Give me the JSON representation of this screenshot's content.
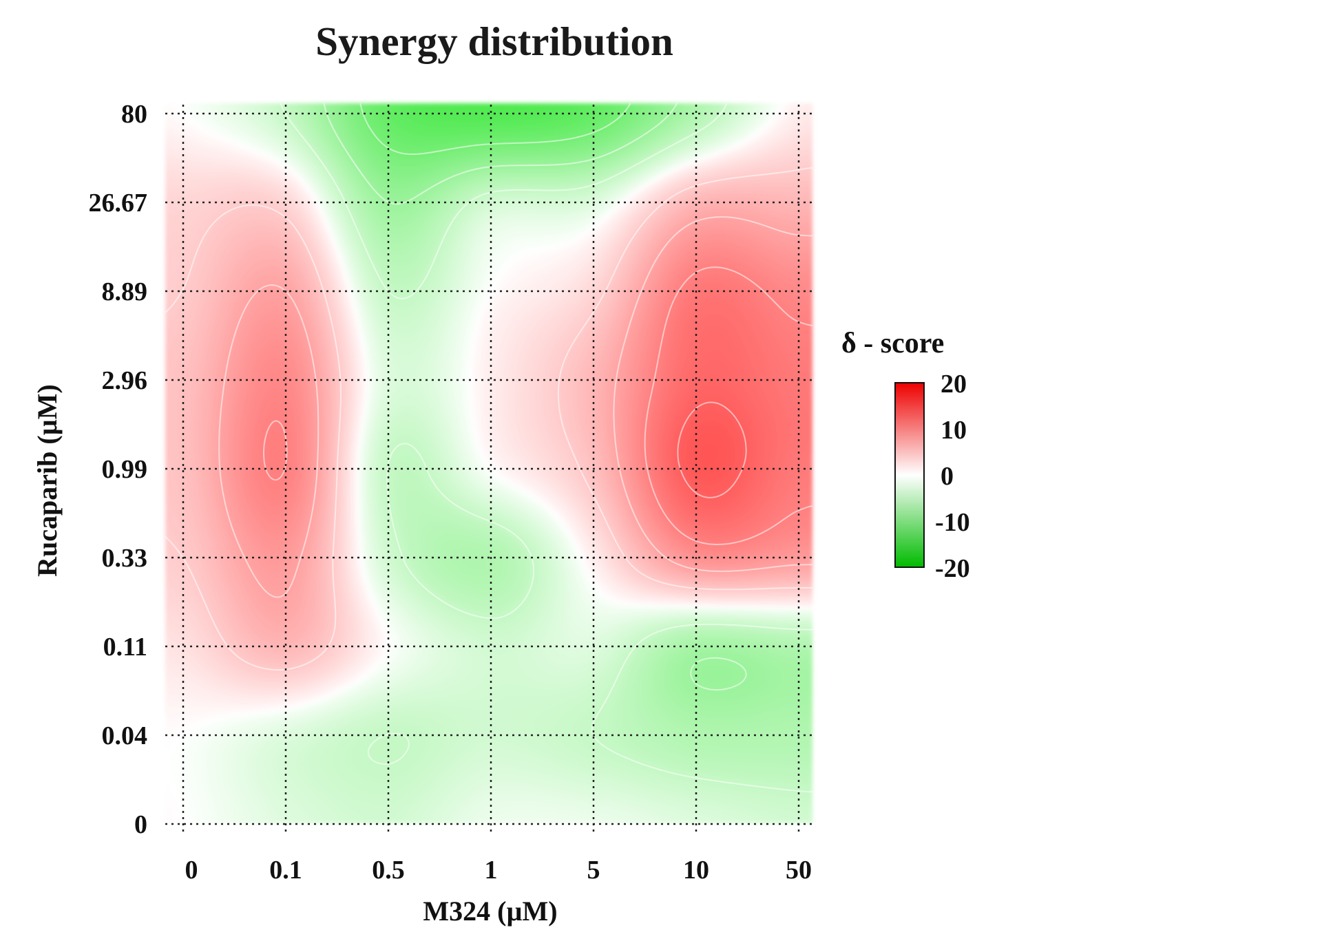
{
  "chart_data": {
    "type": "heatmap",
    "title": "Synergy distribution",
    "xlabel": "M324 (µM)",
    "ylabel": "Rucaparib (µM)",
    "x_ticks": [
      "0",
      "0.1",
      "0.5",
      "1",
      "5",
      "10",
      "50"
    ],
    "y_ticks": [
      "0",
      "0.04",
      "0.11",
      "0.33",
      "0.99",
      "2.96",
      "8.89",
      "26.67",
      "80"
    ],
    "z_grid": [
      [
        0,
        -2,
        -3,
        -1,
        -1,
        -2,
        -3
      ],
      [
        0,
        -2,
        -4,
        -3,
        -4,
        -6,
        -6
      ],
      [
        2,
        6,
        0,
        -3,
        -2,
        -7,
        -6
      ],
      [
        4,
        9,
        -3,
        -6,
        1,
        10,
        9
      ],
      [
        5,
        12,
        -4,
        0,
        5,
        17,
        13
      ],
      [
        5,
        11,
        -2,
        1,
        6,
        15,
        13
      ],
      [
        4,
        8,
        -4,
        0,
        3,
        13,
        11
      ],
      [
        3,
        3,
        -8,
        -3,
        -2,
        6,
        6
      ],
      [
        0,
        -4,
        -14,
        -16,
        -14,
        -6,
        1
      ]
    ],
    "zlim": [
      -20,
      20
    ],
    "legend": {
      "title": "δ - score",
      "ticks": [
        "20",
        "10",
        "0",
        "-10",
        "-20"
      ],
      "colors": [
        "#ff0000",
        "#ffffff",
        "#00cc00"
      ],
      "position": "right"
    },
    "grid": true
  }
}
